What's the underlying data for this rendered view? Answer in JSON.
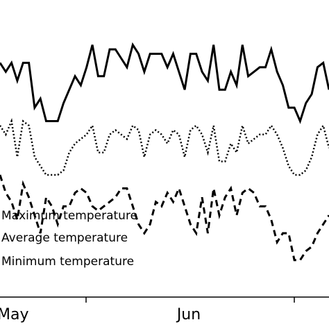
{
  "chart_data": {
    "type": "line",
    "x_labels": [
      "May",
      "Jun"
    ],
    "x_ticks_label_visible": [
      "Jun"
    ],
    "series": [
      {
        "name": "Maximum temperature",
        "style": "solid",
        "color": "#000000",
        "values": [
          26,
          24,
          26,
          22,
          26,
          26,
          16,
          18,
          13,
          13,
          13,
          17,
          20,
          23,
          21,
          25,
          30,
          23,
          23,
          29,
          29,
          27,
          25,
          30,
          28,
          24,
          28,
          28,
          28,
          25,
          28,
          24,
          20,
          28,
          28,
          24,
          22,
          30,
          20,
          20,
          24,
          21,
          30,
          23,
          24,
          25,
          25,
          29,
          24,
          21,
          16,
          16,
          13,
          17,
          19,
          25,
          26,
          20
        ]
      },
      {
        "name": "Average temperature",
        "style": "dotted",
        "color": "#000000",
        "values": [
          12,
          10,
          13,
          5,
          13,
          12,
          5,
          3,
          1,
          1,
          1,
          2,
          6,
          8,
          9,
          10,
          12,
          6,
          6,
          10,
          11,
          10,
          9,
          12,
          11,
          5,
          10,
          11,
          10,
          8,
          11,
          10,
          5,
          11,
          12,
          10,
          6,
          12,
          4,
          4,
          8,
          6,
          12,
          8,
          9,
          10,
          10,
          12,
          10,
          7,
          3,
          1,
          1,
          2,
          5,
          10,
          12,
          7
        ]
      },
      {
        "name": "Minimum temperature",
        "style": "dashed",
        "color": "#000000",
        "values": [
          1,
          -3,
          -5,
          -9,
          -1,
          -4,
          -8,
          -12,
          -4,
          -6,
          -10,
          -6,
          -6,
          -3,
          -2,
          -3,
          -6,
          -7,
          -6,
          -5,
          -4,
          -2,
          -2,
          -6,
          -10,
          -12,
          -10,
          -5,
          -6,
          -3,
          -5,
          -2,
          -6,
          -10,
          -12,
          -4,
          -12,
          -2,
          -8,
          -4,
          -2,
          -8,
          -3,
          -2,
          -3,
          -6,
          -6,
          -9,
          -14,
          -12,
          -12,
          -18,
          -18,
          -16,
          -15,
          -12,
          -10,
          -8
        ]
      }
    ],
    "ylim": [
      -25,
      40
    ],
    "grid": false,
    "legend_position": "middle-left"
  }
}
